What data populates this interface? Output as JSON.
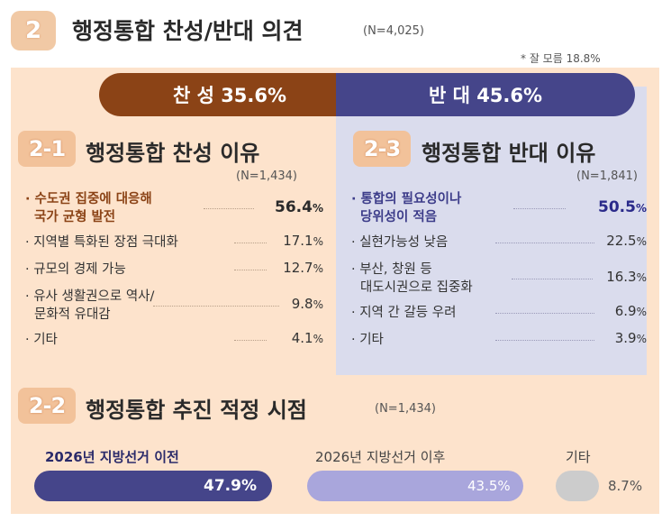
{
  "header": {
    "badge": "2",
    "title": "행정통합 찬성/반대 의견",
    "n": "(N=4,025)",
    "note": "* 잘 모름 18.8%"
  },
  "overall": {
    "pro_label": "찬 성  35.6%",
    "con_label": "반 대  45.6%"
  },
  "sec21": {
    "badge": "2-1",
    "title": "행정통합 찬성 이유",
    "n": "(N=1,434)",
    "items": [
      {
        "label1": "· 수도권 집중에 대응해",
        "label2": "국가 균형 발전",
        "value": "56.4",
        "unit": "%"
      },
      {
        "label1": "· 지역별 특화된 장점 극대화",
        "value": "17.1",
        "unit": "%"
      },
      {
        "label1": "· 규모의 경제 가능",
        "value": "12.7",
        "unit": "%"
      },
      {
        "label1": "· 유사 생활권으로 역사/",
        "label2": "문화적 유대감",
        "value": "9.8",
        "unit": "%"
      },
      {
        "label1": "· 기타",
        "value": "4.1",
        "unit": "%"
      }
    ]
  },
  "sec23": {
    "badge": "2-3",
    "title": "행정통합 반대 이유",
    "n": "(N=1,841)",
    "items": [
      {
        "label1": "· 통합의 필요성이나",
        "label2": "당위성이 적음",
        "value": "50.5",
        "unit": "%"
      },
      {
        "label1": "· 실현가능성 낮음",
        "value": "22.5",
        "unit": "%"
      },
      {
        "label1": "· 부산, 창원 등",
        "label2": "대도시권으로 집중화",
        "value": "16.3",
        "unit": "%"
      },
      {
        "label1": "· 지역 간 갈등 우려",
        "value": "6.9",
        "unit": "%"
      },
      {
        "label1": "· 기타",
        "value": "3.9",
        "unit": "%"
      }
    ]
  },
  "sec22": {
    "badge": "2-2",
    "title": "행정통합 추진 적정 시점",
    "n": "(N=1,434)",
    "bars": [
      {
        "label": "2026년 지방선거 이전",
        "value": "47.9",
        "unit": "%"
      },
      {
        "label": "2026년 지방선거 이후",
        "value": "43.5",
        "unit": "%"
      },
      {
        "label": "기타",
        "value": "8.7",
        "unit": "%"
      }
    ]
  },
  "chart_data": [
    {
      "type": "bar",
      "title": "행정통합 찬성/반대 의견",
      "categories": [
        "찬성",
        "반대",
        "잘 모름"
      ],
      "values": [
        35.6,
        45.6,
        18.8
      ]
    },
    {
      "type": "bar",
      "title": "행정통합 찬성 이유",
      "categories": [
        "수도권 집중에 대응해 국가 균형 발전",
        "지역별 특화된 장점 극대화",
        "규모의 경제 가능",
        "유사 생활권으로 역사/문화적 유대감",
        "기타"
      ],
      "values": [
        56.4,
        17.1,
        12.7,
        9.8,
        4.1
      ]
    },
    {
      "type": "bar",
      "title": "행정통합 반대 이유",
      "categories": [
        "통합의 필요성이나 당위성이 적음",
        "실현가능성 낮음",
        "부산, 창원 등 대도시권으로 집중화",
        "지역 간 갈등 우려",
        "기타"
      ],
      "values": [
        50.5,
        22.5,
        16.3,
        6.9,
        3.9
      ]
    },
    {
      "type": "bar",
      "title": "행정통합 추진 적정 시점",
      "categories": [
        "2026년 지방선거 이전",
        "2026년 지방선거 이후",
        "기타"
      ],
      "values": [
        47.9,
        43.5,
        8.7
      ]
    }
  ],
  "colors": {
    "pro": "#8b4316",
    "con": "#45458a",
    "bar1": "#45458a",
    "bar2": "#a9a6dc",
    "bar3": "#cccccc",
    "panel_left": "#fde3cc",
    "panel_right": "#dadced"
  }
}
